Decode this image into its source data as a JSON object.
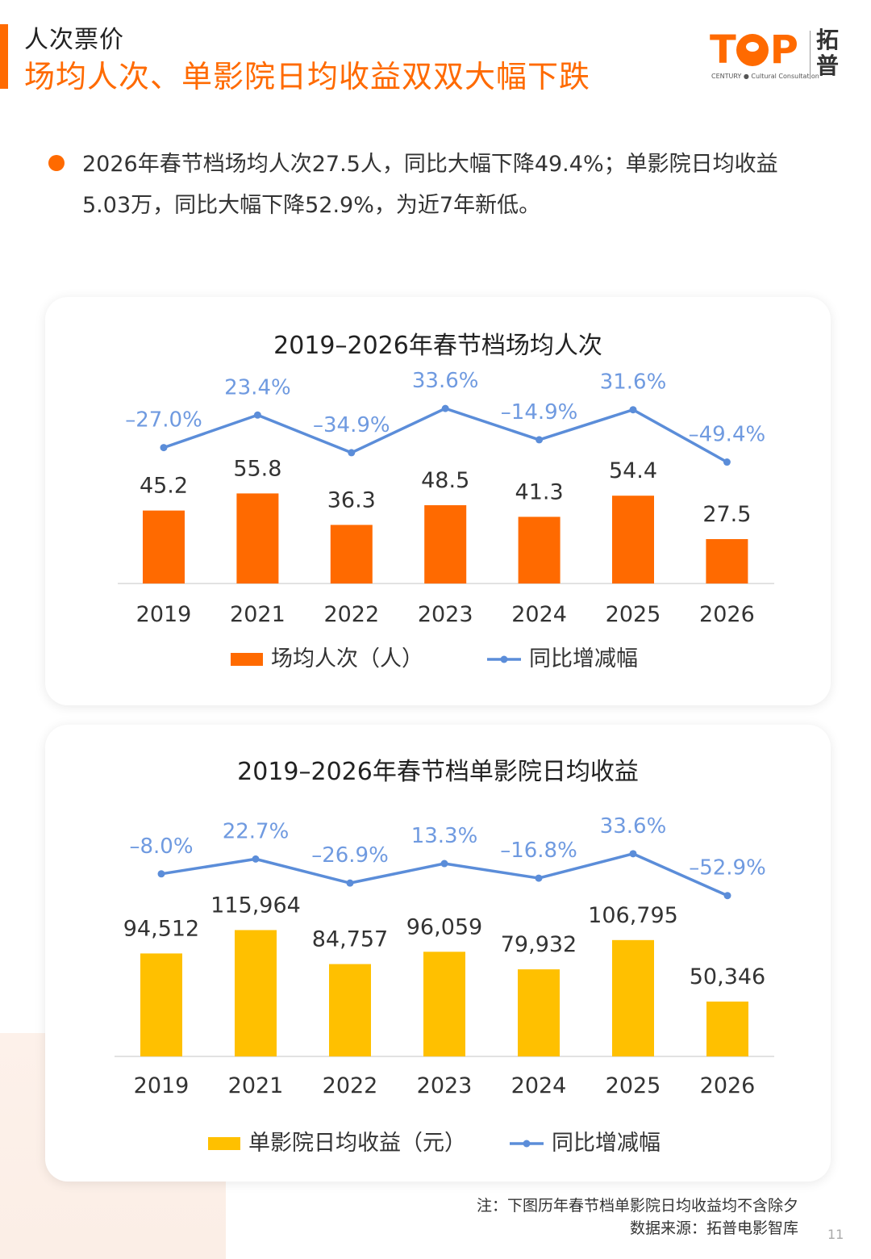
{
  "header": {
    "kicker": "人次票价",
    "headline": "场均人次、单影院日均收益双双大幅下跌"
  },
  "logo": {
    "wordmark_left": "T",
    "wordmark_right": "P",
    "sub": "CENTURY ● Cultural Consultation",
    "cn_1": "拓",
    "cn_2": "普"
  },
  "summary": {
    "line1": "2026年春节档场均人次27.5人，同比大幅下降49.4%；单影院日均收益",
    "line2": "5.03万，同比大幅下降52.9%，为近7年新低。"
  },
  "colors": {
    "accent": "#ff6a00",
    "bar_attendance": "#ff6a00",
    "bar_revenue": "#ffc000",
    "line": "#5b8dd9",
    "line_label": "#6f9ae0"
  },
  "chart_data": [
    {
      "type": "bar",
      "title": "2019–2026年春节档场均人次",
      "categories": [
        "2019",
        "2021",
        "2022",
        "2023",
        "2024",
        "2025",
        "2026"
      ],
      "series": [
        {
          "name": "场均人次（人）",
          "kind": "bar",
          "values": [
            45.2,
            55.8,
            36.3,
            48.5,
            41.3,
            54.4,
            27.5
          ],
          "labels": [
            "45.2",
            "55.8",
            "36.3",
            "48.5",
            "41.3",
            "54.4",
            "27.5"
          ]
        },
        {
          "name": "同比增减幅",
          "kind": "line",
          "values": [
            -27.0,
            23.4,
            -34.9,
            33.6,
            -14.9,
            31.6,
            -49.4
          ],
          "labels": [
            "–27.0%",
            "23.4%",
            "–34.9%",
            "33.6%",
            "–14.9%",
            "31.6%",
            "–49.4%"
          ]
        }
      ],
      "legend": "bottom-center",
      "grid": false
    },
    {
      "type": "bar",
      "title": "2019–2026年春节档单影院日均收益",
      "categories": [
        "2019",
        "2021",
        "2022",
        "2023",
        "2024",
        "2025",
        "2026"
      ],
      "series": [
        {
          "name": "单影院日均收益（元）",
          "kind": "bar",
          "values": [
            94512,
            115964,
            84757,
            96059,
            79932,
            106795,
            50346
          ],
          "labels": [
            "94,512",
            "115,964",
            "84,757",
            "96,059",
            "79,932",
            "106,795",
            "50,346"
          ]
        },
        {
          "name": "同比增减幅",
          "kind": "line",
          "values": [
            -8.0,
            22.7,
            -26.9,
            13.3,
            -16.8,
            33.6,
            -52.9
          ],
          "labels": [
            "–8.0%",
            "22.7%",
            "–26.9%",
            "13.3%",
            "–16.8%",
            "33.6%",
            "–52.9%"
          ]
        }
      ],
      "legend": "bottom-center",
      "grid": false
    }
  ],
  "footer": {
    "note": "注：下图历年春节档单影院日均收益均不含除夕",
    "source": "数据来源：拓普电影智库",
    "page": "11"
  }
}
